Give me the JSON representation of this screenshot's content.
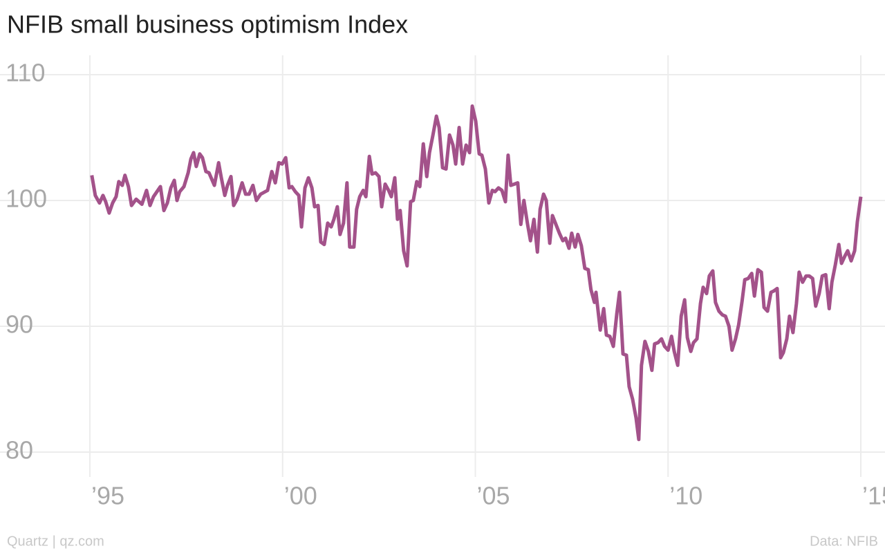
{
  "chart_data": {
    "type": "line",
    "title": "NFIB small business optimism Index",
    "credit": "Quartz | qz.com",
    "source": "Data: NFIB",
    "xlim": [
      1995,
      2015
    ],
    "ylim": [
      80,
      110
    ],
    "xticks": [
      {
        "value": 1995,
        "label": "’95"
      },
      {
        "value": 2000,
        "label": "’00"
      },
      {
        "value": 2005,
        "label": "’05"
      },
      {
        "value": 2010,
        "label": "’10"
      },
      {
        "value": 2015,
        "label": "’15"
      }
    ],
    "yticks": [
      80,
      90,
      100,
      110
    ],
    "grid": true,
    "x": [
      1995.05,
      1995.14,
      1995.25,
      1995.34,
      1995.41,
      1995.5,
      1995.59,
      1995.68,
      1995.75,
      1995.84,
      1995.91,
      1996.0,
      1996.08,
      1996.2,
      1996.35,
      1996.47,
      1996.56,
      1996.65,
      1996.83,
      1996.92,
      1997.01,
      1997.1,
      1997.19,
      1997.26,
      1997.33,
      1997.44,
      1997.55,
      1997.62,
      1997.69,
      1997.76,
      1997.85,
      1997.92,
      1998.01,
      1998.09,
      1998.23,
      1998.34,
      1998.41,
      1998.5,
      1998.57,
      1998.66,
      1998.73,
      1998.82,
      1998.95,
      1999.04,
      1999.13,
      1999.23,
      1999.32,
      1999.43,
      1999.61,
      1999.72,
      1999.81,
      1999.9,
      1999.99,
      2000.08,
      2000.17,
      2000.24,
      2000.33,
      2000.42,
      2000.49,
      2000.58,
      2000.67,
      2000.76,
      2000.83,
      2000.92,
      2000.99,
      2001.08,
      2001.17,
      2001.26,
      2001.33,
      2001.42,
      2001.49,
      2001.58,
      2001.67,
      2001.74,
      2001.85,
      2001.92,
      2002.0,
      2002.09,
      2002.16,
      2002.25,
      2002.32,
      2002.41,
      2002.5,
      2002.57,
      2002.66,
      2002.75,
      2002.82,
      2002.91,
      2002.98,
      2003.05,
      2003.14,
      2003.23,
      2003.32,
      2003.39,
      2003.48,
      2003.56,
      2003.65,
      2003.74,
      2003.81,
      2003.9,
      2003.99,
      2004.06,
      2004.15,
      2004.24,
      2004.33,
      2004.42,
      2004.49,
      2004.58,
      2004.67,
      2004.76,
      2004.85,
      2004.92,
      2005.01,
      2005.1,
      2005.17,
      2005.26,
      2005.35,
      2005.44,
      2005.51,
      2005.6,
      2005.69,
      2005.78,
      2005.85,
      2005.92,
      2006.01,
      2006.1,
      2006.18,
      2006.26,
      2006.35,
      2006.43,
      2006.52,
      2006.61,
      2006.68,
      2006.77,
      2006.84,
      2006.93,
      2007.0,
      2007.09,
      2007.18,
      2007.27,
      2007.34,
      2007.43,
      2007.5,
      2007.59,
      2007.66,
      2007.75,
      2007.84,
      2007.93,
      2008.0,
      2008.09,
      2008.13,
      2008.24,
      2008.33,
      2008.4,
      2008.49,
      2008.58,
      2008.67,
      2008.74,
      2008.83,
      2008.92,
      2008.99,
      2009.08,
      2009.17,
      2009.24,
      2009.31,
      2009.4,
      2009.49,
      2009.58,
      2009.65,
      2009.74,
      2009.83,
      2009.91,
      2010.0,
      2010.09,
      2010.16,
      2010.25,
      2010.34,
      2010.43,
      2010.5,
      2010.59,
      2010.66,
      2010.75,
      2010.84,
      2010.91,
      2011.0,
      2011.07,
      2011.16,
      2011.23,
      2011.32,
      2011.41,
      2011.49,
      2011.58,
      2011.66,
      2011.75,
      2011.83,
      2011.92,
      2011.99,
      2012.08,
      2012.17,
      2012.24,
      2012.33,
      2012.42,
      2012.49,
      2012.58,
      2012.67,
      2012.74,
      2012.83,
      2012.92,
      2012.99,
      2013.08,
      2013.15,
      2013.24,
      2013.33,
      2013.4,
      2013.49,
      2013.58,
      2013.66,
      2013.75,
      2013.83,
      2013.92,
      2014.0,
      2014.09,
      2014.18,
      2014.25,
      2014.34,
      2014.43,
      2014.5,
      2014.59,
      2014.66,
      2014.75,
      2014.84,
      2014.91,
      2015.0
    ],
    "series": [
      {
        "name": "NFIB small business optimism Index",
        "color": "#a3528a",
        "values": [
          102.0,
          100.4,
          99.8,
          100.4,
          99.9,
          99.0,
          99.8,
          100.3,
          101.5,
          101.2,
          102.0,
          101.1,
          99.6,
          100.1,
          99.7,
          100.8,
          99.6,
          100.3,
          101.1,
          99.2,
          99.8,
          101.0,
          101.6,
          100.0,
          100.7,
          101.1,
          102.2,
          103.3,
          103.8,
          102.7,
          103.7,
          103.4,
          102.3,
          102.2,
          101.2,
          103.0,
          101.8,
          100.4,
          101.2,
          101.9,
          99.6,
          100.1,
          101.4,
          100.5,
          100.5,
          101.2,
          100.0,
          100.5,
          100.8,
          102.3,
          101.4,
          103.0,
          102.9,
          103.4,
          101.0,
          101.1,
          100.7,
          100.4,
          97.9,
          101.0,
          101.8,
          101.0,
          99.5,
          99.6,
          96.7,
          96.5,
          98.2,
          97.9,
          98.5,
          99.5,
          97.3,
          98.2,
          101.4,
          96.3,
          96.3,
          99.3,
          100.3,
          100.8,
          100.3,
          103.5,
          102.1,
          102.2,
          101.9,
          99.5,
          101.3,
          100.8,
          100.3,
          101.8,
          98.5,
          99.2,
          96.0,
          94.8,
          99.9,
          100.0,
          101.5,
          101.1,
          104.5,
          101.9,
          103.8,
          105.2,
          106.7,
          105.8,
          102.6,
          102.5,
          105.2,
          104.4,
          102.9,
          105.8,
          102.9,
          104.4,
          103.8,
          107.5,
          106.3,
          103.7,
          103.6,
          102.5,
          99.8,
          100.8,
          100.7,
          101.0,
          100.8,
          99.9,
          103.6,
          101.2,
          101.3,
          101.4,
          98.1,
          100.0,
          98.2,
          96.8,
          98.5,
          95.9,
          99.3,
          100.5,
          100.0,
          96.6,
          98.8,
          98.1,
          97.4,
          96.8,
          97.0,
          96.2,
          97.4,
          96.3,
          97.3,
          96.4,
          94.6,
          94.5,
          92.9,
          91.9,
          92.7,
          89.7,
          91.4,
          89.3,
          89.2,
          88.4,
          91.0,
          92.7,
          87.8,
          87.7,
          85.2,
          84.2,
          82.7,
          81.0,
          86.9,
          88.8,
          88.0,
          86.5,
          88.6,
          88.7,
          89.0,
          88.4,
          88.1,
          89.2,
          88.0,
          86.9,
          90.8,
          92.1,
          89.1,
          88.0,
          88.7,
          89.0,
          91.8,
          93.1,
          92.6,
          94.0,
          94.4,
          91.9,
          91.2,
          90.9,
          90.8,
          90.0,
          88.1,
          89.0,
          90.1,
          92.0,
          93.7,
          93.8,
          94.2,
          92.4,
          94.5,
          94.3,
          91.5,
          91.2,
          92.7,
          92.8,
          93.0,
          87.5,
          87.9,
          89.0,
          90.8,
          89.5,
          91.8,
          94.3,
          93.5,
          94.0,
          94.0,
          93.8,
          91.6,
          92.6,
          94.0,
          94.1,
          91.4,
          93.5,
          94.9,
          96.5,
          95.0,
          95.6,
          96.0,
          95.2,
          96.0,
          98.3,
          100.3
        ]
      }
    ]
  }
}
